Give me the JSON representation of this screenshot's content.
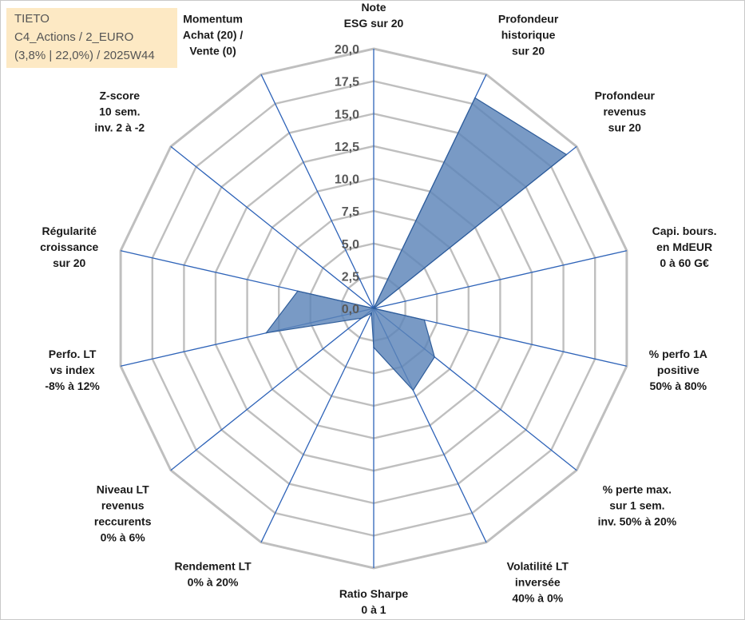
{
  "info": {
    "line1": "TIETO",
    "line2": "C4_Actions / 2_EURO",
    "line3": "(3,8% | 22,0%) / 2025W44"
  },
  "colors": {
    "fill": "#5b84b8",
    "stroke": "#2f5d9a",
    "grid": "#bfbfbf",
    "spoke": "#2e63b8"
  },
  "chart_data": {
    "type": "radar",
    "title": "",
    "rmax": 20,
    "ticks": [
      0,
      2.5,
      5,
      7.5,
      10,
      12.5,
      15,
      17.5,
      20
    ],
    "tick_labels": [
      "0,0",
      "2,5",
      "5,0",
      "7,5",
      "10,0",
      "12,5",
      "15,0",
      "17,5",
      "20,0"
    ],
    "axes": [
      [
        "Note",
        "ESG sur 20"
      ],
      [
        "Profondeur",
        "historique",
        "sur 20"
      ],
      [
        "Profondeur",
        "revenus",
        "sur 20"
      ],
      [
        "Capi. bours.",
        "en MdEUR",
        "0 à 60 G€"
      ],
      [
        "% perfo 1A",
        "positive",
        "50% à 80%"
      ],
      [
        "% perte max.",
        "sur 1 sem.",
        "inv. 50% à 20%"
      ],
      [
        "Volatilité LT",
        "inversée",
        "40% à 0%"
      ],
      [
        "Ratio Sharpe",
        "0 à 1"
      ],
      [
        "Rendement LT",
        "0% à 20%"
      ],
      [
        "Niveau LT",
        "revenus",
        "reccurents",
        "0% à 6%"
      ],
      [
        "Perfo. LT",
        "vs index",
        "-8% à 12%"
      ],
      [
        "Régularité",
        "croissance",
        "sur 20"
      ],
      [
        "Z-score",
        "10 sem.",
        "inv. 2 à -2"
      ],
      [
        "Momentum",
        "Achat (20) /",
        "Vente (0)"
      ]
    ],
    "values": [
      0,
      18,
      19,
      0,
      4,
      6,
      7,
      3,
      0.4,
      1.2,
      8.5,
      6,
      0,
      0
    ]
  }
}
